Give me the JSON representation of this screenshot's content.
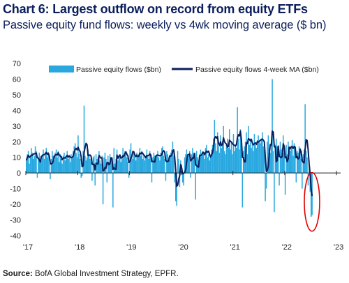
{
  "colors": {
    "bars": "#29a8e0",
    "ma_line": "#0a1e5c",
    "highlight_circle": "#e00000",
    "axis": "#222222"
  },
  "chart_data": {
    "type": "bar",
    "title": "Chart 6: Largest outflow on record from equity ETFs",
    "subtitle": "Passive equity fund flows: weekly vs 4wk moving average ($ bn)",
    "source_label": "Source:",
    "source_text": "BofA Global Investment Strategy, EPFR.",
    "ylim": [
      -40,
      70
    ],
    "yticks": [
      70,
      60,
      50,
      40,
      30,
      20,
      10,
      0,
      -10,
      -20,
      -30,
      -40
    ],
    "xtick_labels": [
      "'17",
      "'18",
      "'19",
      "'20",
      "'21",
      "'22",
      "'23"
    ],
    "xlim": [
      2017.0,
      2023.08
    ],
    "legend_placement": "top",
    "series": [
      {
        "name": "Passive equity flows ($bn)",
        "type": "bar",
        "x_start": 2017.0,
        "week_step": 0.01923,
        "values": [
          8,
          12,
          14,
          6,
          10,
          16,
          13,
          9,
          11,
          17,
          14,
          -3,
          10,
          13,
          8,
          11,
          12,
          15,
          9,
          13,
          16,
          10,
          12,
          6,
          -4,
          9,
          14,
          11,
          8,
          13,
          15,
          10,
          14,
          7,
          12,
          9,
          6,
          11,
          13,
          8,
          10,
          14,
          9,
          11,
          7,
          12,
          10,
          14,
          17,
          19,
          13,
          10,
          24,
          12,
          9,
          -3,
          -2,
          14,
          43,
          11,
          8,
          10,
          15,
          12,
          9,
          7,
          -5,
          10,
          11,
          -8,
          12,
          9,
          10,
          14,
          8,
          6,
          11,
          -20,
          10,
          13,
          9,
          -6,
          11,
          7,
          12,
          9,
          10,
          -22,
          16,
          6,
          9,
          15,
          8,
          11,
          12,
          7,
          9,
          16,
          11,
          14,
          13,
          10,
          7,
          -3,
          15,
          19,
          12,
          9,
          14,
          11,
          8,
          13,
          10,
          12,
          16,
          11,
          14,
          9,
          12,
          8,
          10,
          15,
          11,
          9,
          14,
          12,
          -6,
          10,
          13,
          11,
          9,
          12,
          14,
          10,
          8,
          13,
          16,
          17,
          11,
          9,
          -5,
          14,
          12,
          10,
          8,
          13,
          15,
          20,
          11,
          -6,
          -18,
          -21,
          14,
          9,
          -9,
          8,
          5,
          -6,
          -8,
          10,
          12,
          15,
          9,
          11,
          14,
          -3,
          12,
          16,
          13,
          9,
          -17,
          14,
          10,
          8,
          12,
          15,
          11,
          14,
          13,
          9,
          16,
          18,
          10,
          12,
          8,
          11,
          15,
          18,
          22,
          34,
          19,
          14,
          26,
          17,
          13,
          24,
          16,
          20,
          30,
          14,
          12,
          18,
          22,
          16,
          28,
          15,
          20,
          12,
          25,
          14,
          18,
          16,
          42,
          22,
          15,
          28,
          19,
          -22,
          14,
          17,
          20,
          26,
          12,
          30,
          18,
          22,
          16,
          20,
          14,
          25,
          18,
          16,
          21,
          24,
          20,
          19,
          22,
          26,
          17,
          15,
          -18,
          -10,
          20,
          24,
          16,
          13,
          18,
          60,
          14,
          -25,
          18,
          22,
          17,
          12,
          -8,
          20,
          15,
          16,
          24,
          13,
          -14,
          18,
          12,
          20,
          16,
          14,
          17,
          21,
          11,
          19,
          15,
          -6,
          14,
          13,
          17,
          16,
          9,
          -10,
          12,
          15,
          44,
          14,
          10,
          -8,
          8,
          -12,
          -28,
          -27
        ]
      },
      {
        "name": "Passive equity flows 4-week MA ($bn)",
        "type": "line",
        "derived_from": "4-week moving average of weekly flows"
      }
    ],
    "annotation": "red circle highlighting the latest outflow"
  }
}
